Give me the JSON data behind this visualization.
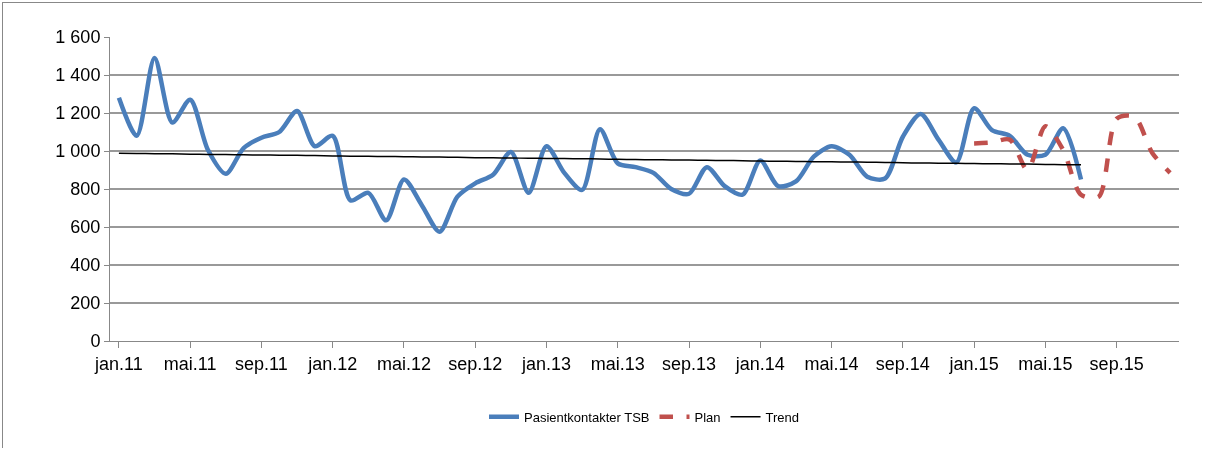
{
  "chart_data": {
    "type": "line",
    "categories": [
      "jan.11",
      null,
      null,
      null,
      "mai.11",
      null,
      null,
      null,
      "sep.11",
      null,
      null,
      null,
      "jan.12",
      null,
      null,
      null,
      "mai.12",
      null,
      null,
      null,
      "sep.12",
      null,
      null,
      null,
      "jan.13",
      null,
      null,
      null,
      "mai.13",
      null,
      null,
      null,
      "sep.13",
      null,
      null,
      null,
      "jan.14",
      null,
      null,
      null,
      "mai.14",
      null,
      null,
      null,
      "sep.14",
      null,
      null,
      null,
      "jan.15",
      null,
      null,
      null,
      "mai.15",
      null,
      null,
      null,
      "sep.15",
      null,
      null,
      null
    ],
    "series": [
      {
        "name": "Pasientkontakter TSB",
        "color": "#4a7ebb",
        "line_style": "solid",
        "values": [
          1280,
          1080,
          1490,
          1150,
          1270,
          1005,
          880,
          1015,
          1070,
          1100,
          1210,
          1025,
          1080,
          740,
          780,
          635,
          850,
          715,
          575,
          760,
          830,
          875,
          995,
          780,
          1025,
          885,
          795,
          1115,
          935,
          915,
          885,
          800,
          775,
          915,
          815,
          770,
          950,
          815,
          840,
          970,
          1025,
          980,
          865,
          855,
          1075,
          1195,
          1060,
          940,
          1225,
          1110,
          1080,
          980,
          980,
          1120,
          850,
          null,
          null,
          null,
          null,
          null
        ]
      },
      {
        "name": "Plan",
        "color": "#c0504d",
        "line_style": "dashed",
        "values": [
          null,
          null,
          null,
          null,
          null,
          null,
          null,
          null,
          null,
          null,
          null,
          null,
          null,
          null,
          null,
          null,
          null,
          null,
          null,
          null,
          null,
          null,
          null,
          null,
          null,
          null,
          null,
          null,
          null,
          null,
          null,
          null,
          null,
          null,
          null,
          null,
          null,
          null,
          null,
          null,
          null,
          null,
          null,
          null,
          null,
          null,
          null,
          null,
          1040,
          1045,
          1060,
          900,
          1130,
          1005,
          770,
          760,
          1170,
          1180,
          990,
          885
        ]
      },
      {
        "name": "Trend",
        "color": "#000000",
        "line_style": "solid",
        "values": [
          988,
          987,
          986,
          985,
          983,
          982,
          981,
          980,
          979,
          978,
          977,
          976,
          974,
          973,
          972,
          971,
          970,
          969,
          968,
          967,
          965,
          964,
          963,
          962,
          961,
          960,
          959,
          958,
          956,
          955,
          954,
          953,
          952,
          951,
          950,
          949,
          947,
          946,
          945,
          944,
          943,
          942,
          941,
          940,
          938,
          937,
          936,
          935,
          934,
          933,
          932,
          931,
          929,
          928,
          927,
          null,
          null,
          null,
          null,
          null
        ]
      }
    ],
    "ylim": [
      0,
      1600
    ],
    "yticks": [
      0,
      200,
      400,
      600,
      800,
      {
        "value": 1000,
        "label": "1 000"
      },
      {
        "value": 1200,
        "label": "1 200"
      },
      {
        "value": 1400,
        "label": "1 400"
      },
      {
        "value": 1600,
        "label": "1 600"
      }
    ],
    "grid": "y",
    "legend": "bottom",
    "marker": "none"
  }
}
